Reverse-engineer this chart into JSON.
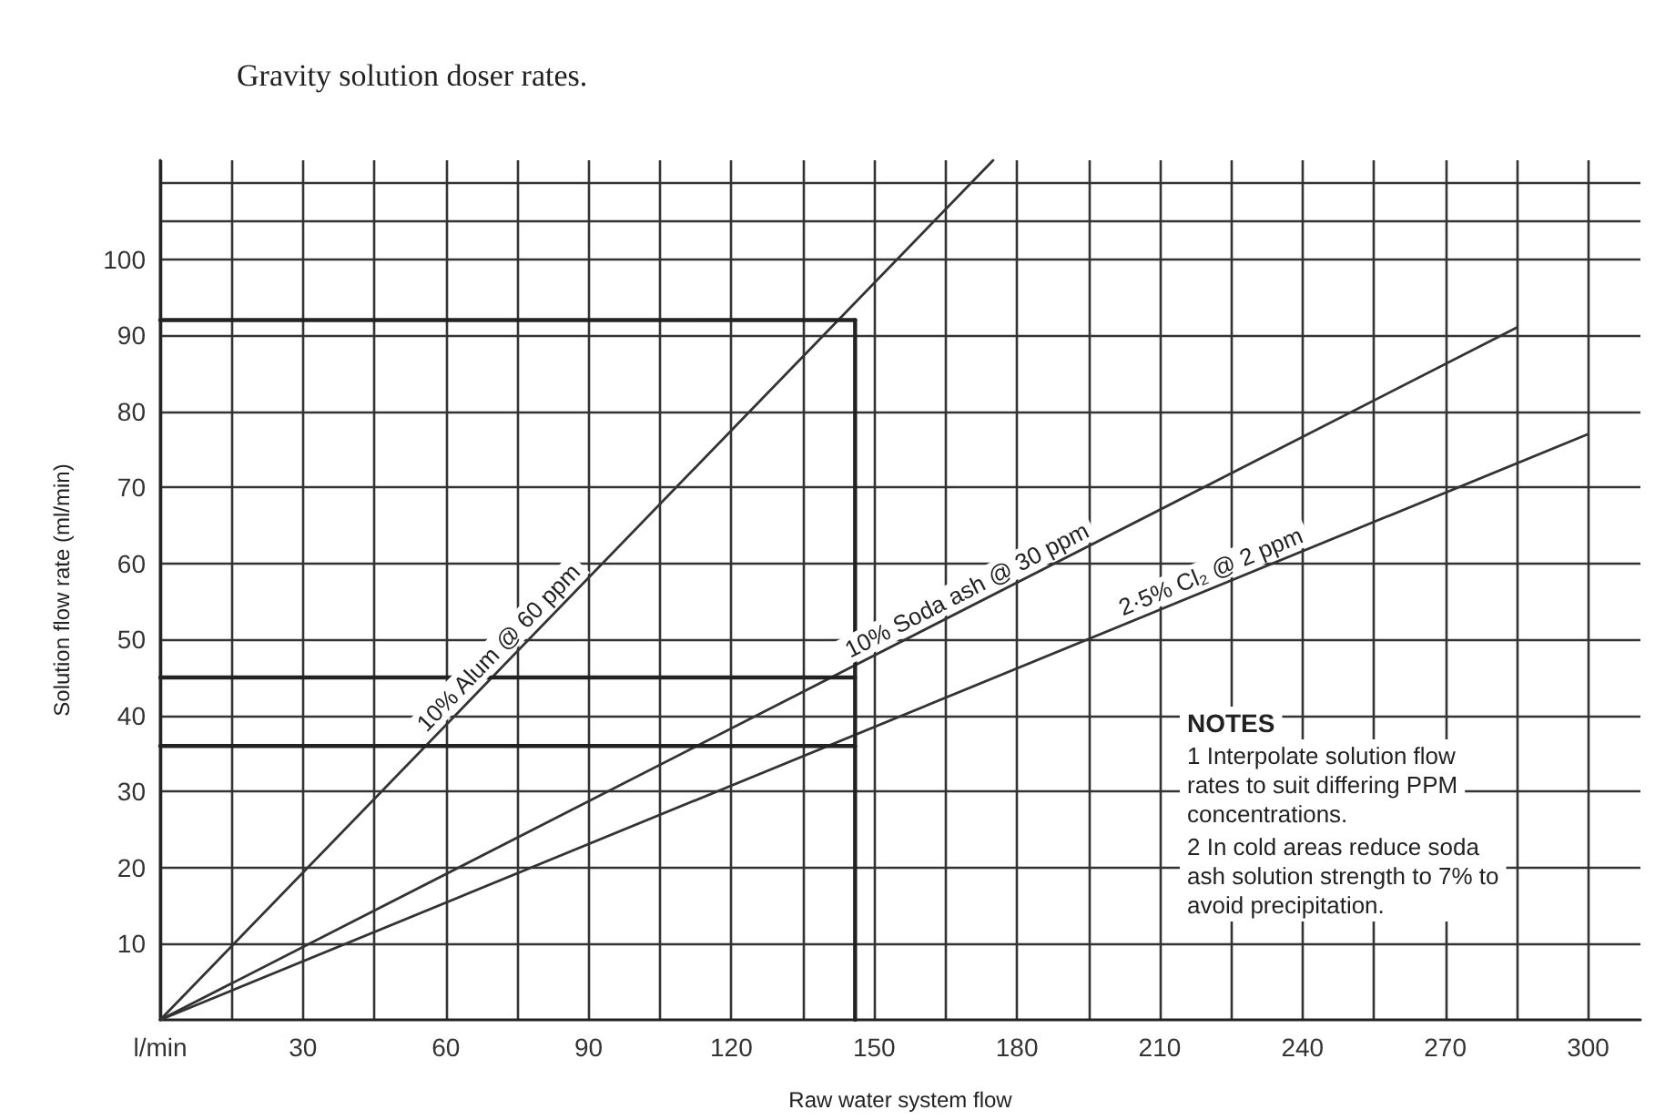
{
  "chart_data": {
    "type": "line",
    "title": "Gravity solution doser rates.",
    "xlabel": "Raw water system flow",
    "ylabel": "Solution flow rate (ml/min)",
    "xlim": [
      0,
      311
    ],
    "ylim": [
      0,
      113
    ],
    "xticks": [
      {
        "value": 0,
        "label": "l/min"
      },
      {
        "value": 15,
        "label": null
      },
      30,
      {
        "value": 45,
        "label": null
      },
      60,
      {
        "value": 75,
        "label": null
      },
      90,
      {
        "value": 105,
        "label": null
      },
      120,
      {
        "value": 135,
        "label": null
      },
      150,
      {
        "value": 165,
        "label": null
      },
      180,
      {
        "value": 195,
        "label": null
      },
      210,
      {
        "value": 225,
        "label": null
      },
      240,
      {
        "value": 255,
        "label": null
      },
      270,
      {
        "value": 285,
        "label": null
      },
      300
    ],
    "yticks": [
      10,
      20,
      30,
      40,
      50,
      60,
      70,
      80,
      90,
      100,
      {
        "value": 105,
        "label": null
      },
      {
        "value": 110,
        "label": null
      }
    ],
    "grid": true,
    "legend": false,
    "marker": "none",
    "line_style": "solid",
    "series": [
      {
        "name": "10% Alum @ 60 ppm",
        "color": "#333333",
        "x": [
          0,
          175
        ],
        "values": [
          0,
          113
        ]
      },
      {
        "name": "10% Soda ash @ 30 ppm",
        "color": "#333333",
        "x": [
          0,
          285
        ],
        "values": [
          0,
          91
        ]
      },
      {
        "name": "2·5% Cl₂ @ 2 ppm",
        "color": "#333333",
        "x": [
          0,
          300
        ],
        "values": [
          0,
          77
        ]
      },
      {
        "color": "#222222",
        "x": [
          0,
          146
        ],
        "values": [
          92,
          92
        ]
      },
      {
        "color": "#222222",
        "x": [
          0,
          146
        ],
        "values": [
          45,
          45
        ]
      },
      {
        "color": "#222222",
        "x": [
          0,
          146
        ],
        "values": [
          36,
          36
        ]
      },
      {
        "color": "#222222",
        "x": [
          146,
          146
        ],
        "values": [
          0,
          92
        ]
      }
    ],
    "annotations": [
      "NOTES",
      "1 Interpolate solution flow rates to suit differing PPM concentrations.",
      "2 In cold areas reduce soda ash solution strength to 7% to avoid precipitation."
    ]
  }
}
